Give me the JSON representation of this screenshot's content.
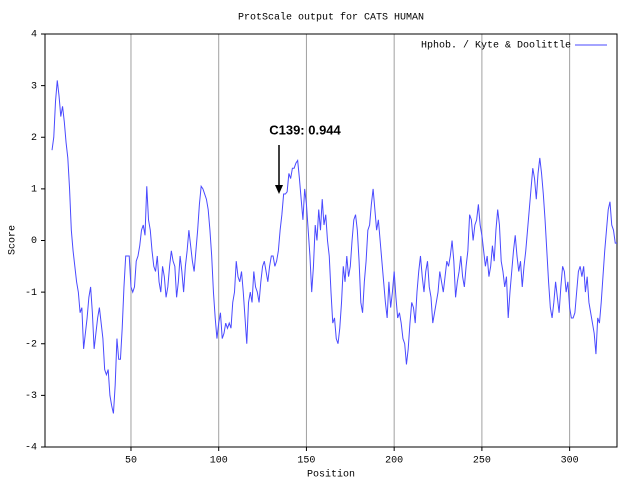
{
  "chart_data": {
    "type": "line",
    "title": "ProtScale output for CATS HUMAN",
    "x_label": "Position",
    "y_label": "Score",
    "annotation": "C139: 0.944",
    "xlim": [
      1,
      327
    ],
    "ylim": [
      -4,
      4
    ],
    "xticks": [
      50,
      100,
      150,
      200,
      250,
      300
    ],
    "yticks": [
      -4,
      -3,
      -2,
      -1,
      0,
      1,
      2,
      3,
      4
    ],
    "xgrid": true,
    "legend": "top-right",
    "x": [
      5,
      6,
      7,
      8,
      9,
      10,
      11,
      12,
      13,
      14,
      15,
      16,
      17,
      18,
      19,
      20,
      21,
      22,
      23,
      24,
      25,
      26,
      27,
      28,
      29,
      30,
      31,
      32,
      33,
      34,
      35,
      36,
      37,
      38,
      39,
      40,
      41,
      42,
      43,
      44,
      45,
      46,
      47,
      48,
      49,
      50,
      51,
      52,
      53,
      54,
      55,
      56,
      57,
      58,
      59,
      60,
      61,
      62,
      63,
      64,
      65,
      66,
      67,
      68,
      69,
      70,
      71,
      72,
      73,
      74,
      75,
      76,
      77,
      78,
      79,
      80,
      81,
      82,
      83,
      84,
      85,
      86,
      87,
      88,
      89,
      90,
      91,
      92,
      93,
      94,
      95,
      96,
      97,
      98,
      99,
      100,
      101,
      102,
      103,
      104,
      105,
      106,
      107,
      108,
      109,
      110,
      111,
      112,
      113,
      114,
      115,
      116,
      117,
      118,
      119,
      120,
      121,
      122,
      123,
      124,
      125,
      126,
      127,
      128,
      129,
      130,
      131,
      132,
      133,
      134,
      135,
      136,
      137,
      138,
      139,
      140,
      141,
      142,
      143,
      144,
      145,
      146,
      147,
      148,
      149,
      150,
      151,
      152,
      153,
      154,
      155,
      156,
      157,
      158,
      159,
      160,
      161,
      162,
      163,
      164,
      165,
      166,
      167,
      168,
      169,
      170,
      171,
      172,
      173,
      174,
      175,
      176,
      177,
      178,
      179,
      180,
      181,
      182,
      183,
      184,
      185,
      186,
      187,
      188,
      189,
      190,
      191,
      192,
      193,
      194,
      195,
      196,
      197,
      198,
      199,
      200,
      201,
      202,
      203,
      204,
      205,
      206,
      207,
      208,
      209,
      210,
      211,
      212,
      213,
      214,
      215,
      216,
      217,
      218,
      219,
      220,
      221,
      222,
      223,
      224,
      225,
      226,
      227,
      228,
      229,
      230,
      231,
      232,
      233,
      234,
      235,
      236,
      237,
      238,
      239,
      240,
      241,
      242,
      243,
      244,
      245,
      246,
      247,
      248,
      249,
      250,
      251,
      252,
      253,
      254,
      255,
      256,
      257,
      258,
      259,
      260,
      261,
      262,
      263,
      264,
      265,
      266,
      267,
      268,
      269,
      270,
      271,
      272,
      273,
      274,
      275,
      276,
      277,
      278,
      279,
      280,
      281,
      282,
      283,
      284,
      285,
      286,
      287,
      288,
      289,
      290,
      291,
      292,
      293,
      294,
      295,
      296,
      297,
      298,
      299,
      300,
      301,
      302,
      303,
      304,
      305,
      306,
      307,
      308,
      309,
      310,
      311,
      312,
      313,
      314,
      315,
      316,
      317,
      318,
      319,
      320,
      321,
      322,
      323,
      324,
      325,
      326,
      327
    ],
    "series": [
      {
        "name": "Hphob. / Kyte & Doolittle",
        "color": "#4a4aff",
        "values": [
          1.75,
          2.0,
          2.7,
          3.1,
          2.8,
          2.4,
          2.6,
          2.3,
          1.9,
          1.6,
          1.0,
          0.2,
          -0.2,
          -0.5,
          -0.8,
          -1.0,
          -1.4,
          -1.3,
          -2.1,
          -1.8,
          -1.5,
          -1.1,
          -0.9,
          -1.4,
          -2.1,
          -1.8,
          -1.5,
          -1.3,
          -1.6,
          -1.9,
          -2.5,
          -2.6,
          -2.5,
          -3.0,
          -3.2,
          -3.35,
          -2.8,
          -1.9,
          -2.3,
          -2.3,
          -1.7,
          -0.9,
          -0.3,
          -0.3,
          -0.3,
          -0.9,
          -1.0,
          -0.9,
          -0.4,
          -0.3,
          -0.1,
          0.2,
          0.3,
          0.1,
          1.05,
          0.4,
          0.2,
          -0.2,
          -0.5,
          -0.6,
          -0.3,
          -0.8,
          -1.0,
          -0.5,
          -0.7,
          -1.1,
          -0.9,
          -0.5,
          -0.2,
          -0.4,
          -0.5,
          -1.1,
          -0.8,
          -0.3,
          -0.6,
          -1.0,
          -0.5,
          -0.2,
          0.2,
          -0.1,
          -0.4,
          -0.6,
          -0.2,
          0.2,
          0.7,
          1.05,
          1.0,
          0.9,
          0.8,
          0.6,
          0.2,
          -0.3,
          -1.0,
          -1.5,
          -1.9,
          -1.6,
          -1.4,
          -1.9,
          -1.8,
          -1.6,
          -1.7,
          -1.6,
          -1.7,
          -1.2,
          -1.0,
          -0.4,
          -0.7,
          -0.8,
          -0.6,
          -1.0,
          -1.5,
          -2.0,
          -1.2,
          -1.0,
          -1.2,
          -0.6,
          -0.9,
          -1.0,
          -1.2,
          -0.8,
          -0.5,
          -0.4,
          -0.6,
          -0.8,
          -0.5,
          -0.3,
          -0.3,
          -0.5,
          -0.4,
          -0.2,
          0.2,
          0.5,
          0.9,
          0.9,
          0.944,
          1.3,
          1.2,
          1.4,
          1.4,
          1.5,
          1.55,
          1.2,
          0.8,
          0.4,
          1.0,
          0.7,
          0.2,
          -0.3,
          -1.0,
          -0.5,
          0.3,
          0.0,
          0.6,
          0.2,
          0.8,
          0.3,
          0.5,
          0.0,
          -0.3,
          -1.0,
          -1.6,
          -1.5,
          -1.9,
          -2.0,
          -1.7,
          -1.2,
          -0.5,
          -0.8,
          -0.3,
          -0.7,
          -0.5,
          0.0,
          0.4,
          0.5,
          0.2,
          -0.4,
          -1.2,
          -1.4,
          -0.8,
          -0.4,
          0.2,
          0.3,
          0.7,
          1.0,
          0.6,
          0.2,
          0.4,
          0.0,
          -0.4,
          -0.8,
          -1.2,
          -1.5,
          -0.8,
          -1.3,
          -1.0,
          -0.6,
          -1.1,
          -1.5,
          -1.4,
          -1.6,
          -1.9,
          -2.0,
          -2.4,
          -2.1,
          -1.6,
          -1.2,
          -1.3,
          -1.6,
          -1.0,
          -0.6,
          -0.3,
          -0.7,
          -1.0,
          -0.6,
          -0.4,
          -0.9,
          -1.1,
          -1.6,
          -1.4,
          -1.2,
          -1.0,
          -0.6,
          -0.8,
          -1.0,
          -0.7,
          -0.4,
          -0.5,
          -0.3,
          0.0,
          -0.4,
          -1.1,
          -0.8,
          -0.6,
          -0.3,
          -0.7,
          -0.9,
          -0.5,
          -0.2,
          0.5,
          0.4,
          0.0,
          0.3,
          0.4,
          0.7,
          0.3,
          0.1,
          -0.2,
          -0.5,
          -0.3,
          -0.7,
          -0.5,
          -0.1,
          -0.4,
          0.2,
          0.6,
          0.3,
          -0.4,
          -0.6,
          -0.9,
          -0.7,
          -1.5,
          -1.0,
          -0.6,
          -0.2,
          0.1,
          -0.3,
          -0.6,
          -0.4,
          -0.9,
          -0.5,
          -0.2,
          0.2,
          0.6,
          1.0,
          1.4,
          1.2,
          0.8,
          1.3,
          1.6,
          1.3,
          0.9,
          0.4,
          -0.2,
          -0.8,
          -1.3,
          -1.5,
          -1.2,
          -0.8,
          -1.1,
          -1.4,
          -0.9,
          -0.5,
          -0.6,
          -1.0,
          -0.8,
          -1.3,
          -1.5,
          -1.5,
          -1.4,
          -1.0,
          -0.6,
          -0.5,
          -0.7,
          -0.5,
          -1.0,
          -0.7,
          -1.2,
          -1.4,
          -1.6,
          -1.8,
          -2.2,
          -1.5,
          -1.6,
          -1.2,
          -0.7,
          -0.2,
          0.2,
          0.6,
          0.75,
          0.3,
          0.2,
          -0.05,
          -0.05
        ]
      }
    ]
  }
}
